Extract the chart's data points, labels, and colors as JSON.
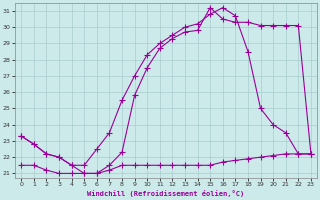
{
  "background_color": "#cdeaea",
  "line_color": "#990099",
  "grid_color": "#aacccc",
  "xlabel": "Windchill (Refroidissement éolien,°C)",
  "xlim": [
    -0.5,
    23.5
  ],
  "ylim": [
    20.7,
    31.5
  ],
  "yticks": [
    21,
    22,
    23,
    24,
    25,
    26,
    27,
    28,
    29,
    30,
    31
  ],
  "xticks": [
    0,
    1,
    2,
    3,
    4,
    5,
    6,
    7,
    8,
    9,
    10,
    11,
    12,
    13,
    14,
    15,
    16,
    17,
    18,
    19,
    20,
    21,
    22,
    23
  ],
  "line1_x": [
    0,
    1,
    2,
    3,
    4,
    5,
    6,
    7,
    8,
    9,
    10,
    11,
    12,
    13,
    14,
    15,
    16,
    17,
    18,
    19,
    20,
    21,
    22,
    23
  ],
  "line1_y": [
    23.3,
    22.8,
    22.2,
    22.0,
    21.5,
    21.0,
    21.0,
    21.5,
    22.3,
    25.8,
    27.5,
    28.7,
    29.3,
    29.7,
    29.8,
    31.2,
    30.5,
    30.3,
    30.3,
    30.1,
    30.1,
    30.1,
    30.1,
    22.2
  ],
  "line2_x": [
    0,
    1,
    2,
    3,
    4,
    5,
    6,
    7,
    8,
    9,
    10,
    11,
    12,
    13,
    14,
    15,
    16,
    17,
    18,
    19,
    20,
    21,
    22,
    23
  ],
  "line2_y": [
    23.3,
    22.8,
    22.2,
    22.0,
    21.5,
    21.5,
    22.5,
    23.5,
    25.5,
    27.0,
    28.3,
    29.0,
    29.5,
    30.0,
    30.2,
    30.8,
    31.2,
    30.7,
    28.5,
    25.0,
    24.0,
    23.5,
    22.2,
    22.2
  ],
  "line3_x": [
    0,
    1,
    2,
    3,
    4,
    5,
    6,
    7,
    8,
    9,
    10,
    11,
    12,
    13,
    14,
    15,
    16,
    17,
    18,
    19,
    20,
    21,
    22,
    23
  ],
  "line3_y": [
    21.5,
    21.5,
    21.2,
    21.0,
    21.0,
    21.0,
    21.0,
    21.2,
    21.5,
    21.5,
    21.5,
    21.5,
    21.5,
    21.5,
    21.5,
    21.5,
    21.7,
    21.8,
    21.9,
    22.0,
    22.1,
    22.2,
    22.2,
    22.2
  ]
}
